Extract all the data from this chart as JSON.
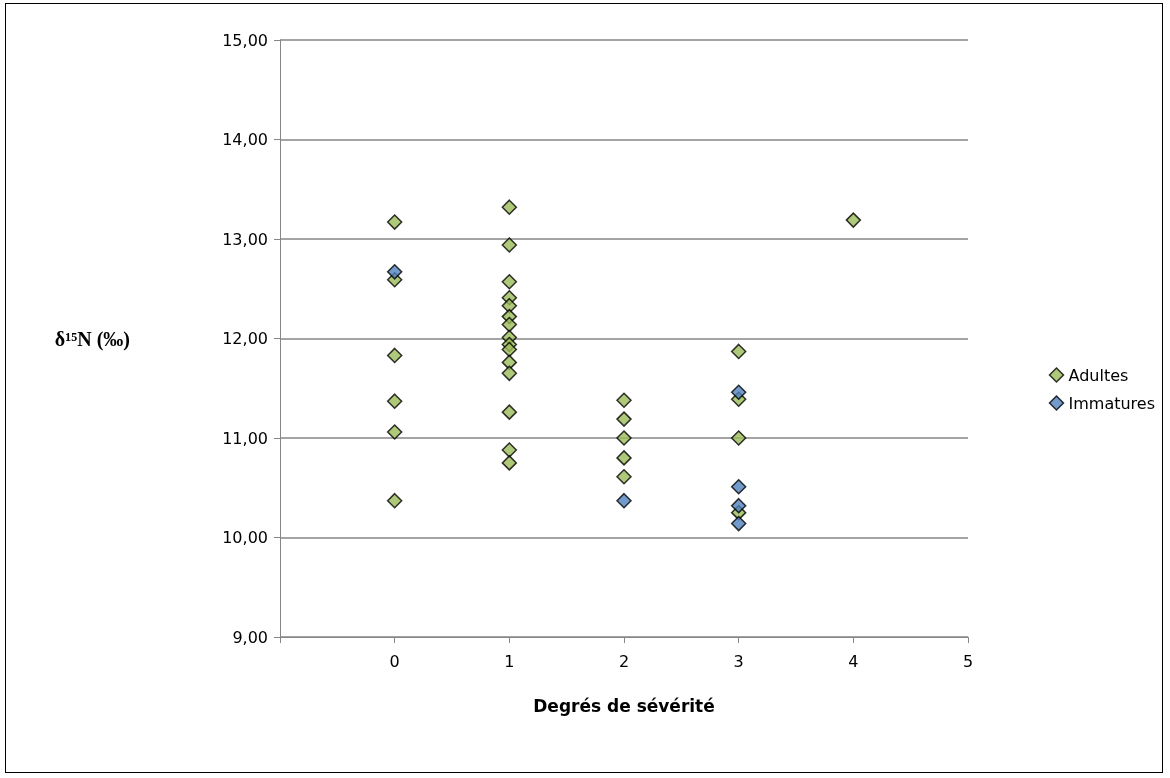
{
  "chart_data": {
    "type": "scatter",
    "xlabel": "Degrés de sévérité",
    "ylabel": "δ¹⁵N (‰)",
    "xlim": [
      -1,
      5
    ],
    "xticks": [
      {
        "value": -1,
        "label": null
      },
      0,
      1,
      2,
      3,
      4,
      5
    ],
    "ylim": [
      9,
      15
    ],
    "yticks": [
      {
        "value": 9,
        "label": "9,00"
      },
      {
        "value": 10,
        "label": "10,00"
      },
      {
        "value": 11,
        "label": "11,00"
      },
      {
        "value": 12,
        "label": "12,00"
      },
      {
        "value": 13,
        "label": "13,00"
      },
      {
        "value": 14,
        "label": "14,00"
      },
      {
        "value": 15,
        "label": "15,00"
      }
    ],
    "grid": "y",
    "legend": "right",
    "marker": "diamond",
    "series": [
      {
        "name": "Adultes",
        "color": "#9bbb59",
        "x": [
          0,
          0,
          0,
          0,
          0,
          0,
          1,
          1,
          1,
          1,
          1,
          1,
          1,
          1,
          1,
          1,
          1,
          1,
          1,
          1,
          1,
          2,
          2,
          2,
          2,
          2,
          3,
          3,
          3,
          3,
          4
        ],
        "values": [
          13.17,
          12.59,
          11.83,
          11.37,
          11.06,
          10.37,
          13.32,
          12.94,
          12.57,
          12.41,
          12.33,
          12.22,
          12.14,
          12.01,
          11.94,
          11.89,
          11.76,
          11.65,
          11.26,
          10.88,
          10.75,
          11.38,
          11.19,
          11.0,
          10.8,
          10.61,
          11.87,
          11.39,
          11.0,
          10.25,
          13.19
        ]
      },
      {
        "name": "Immatures",
        "color": "#4f81bd",
        "x": [
          0,
          2,
          3,
          3,
          3,
          3
        ],
        "values": [
          12.67,
          10.37,
          11.46,
          10.51,
          10.32,
          10.14
        ]
      }
    ]
  }
}
